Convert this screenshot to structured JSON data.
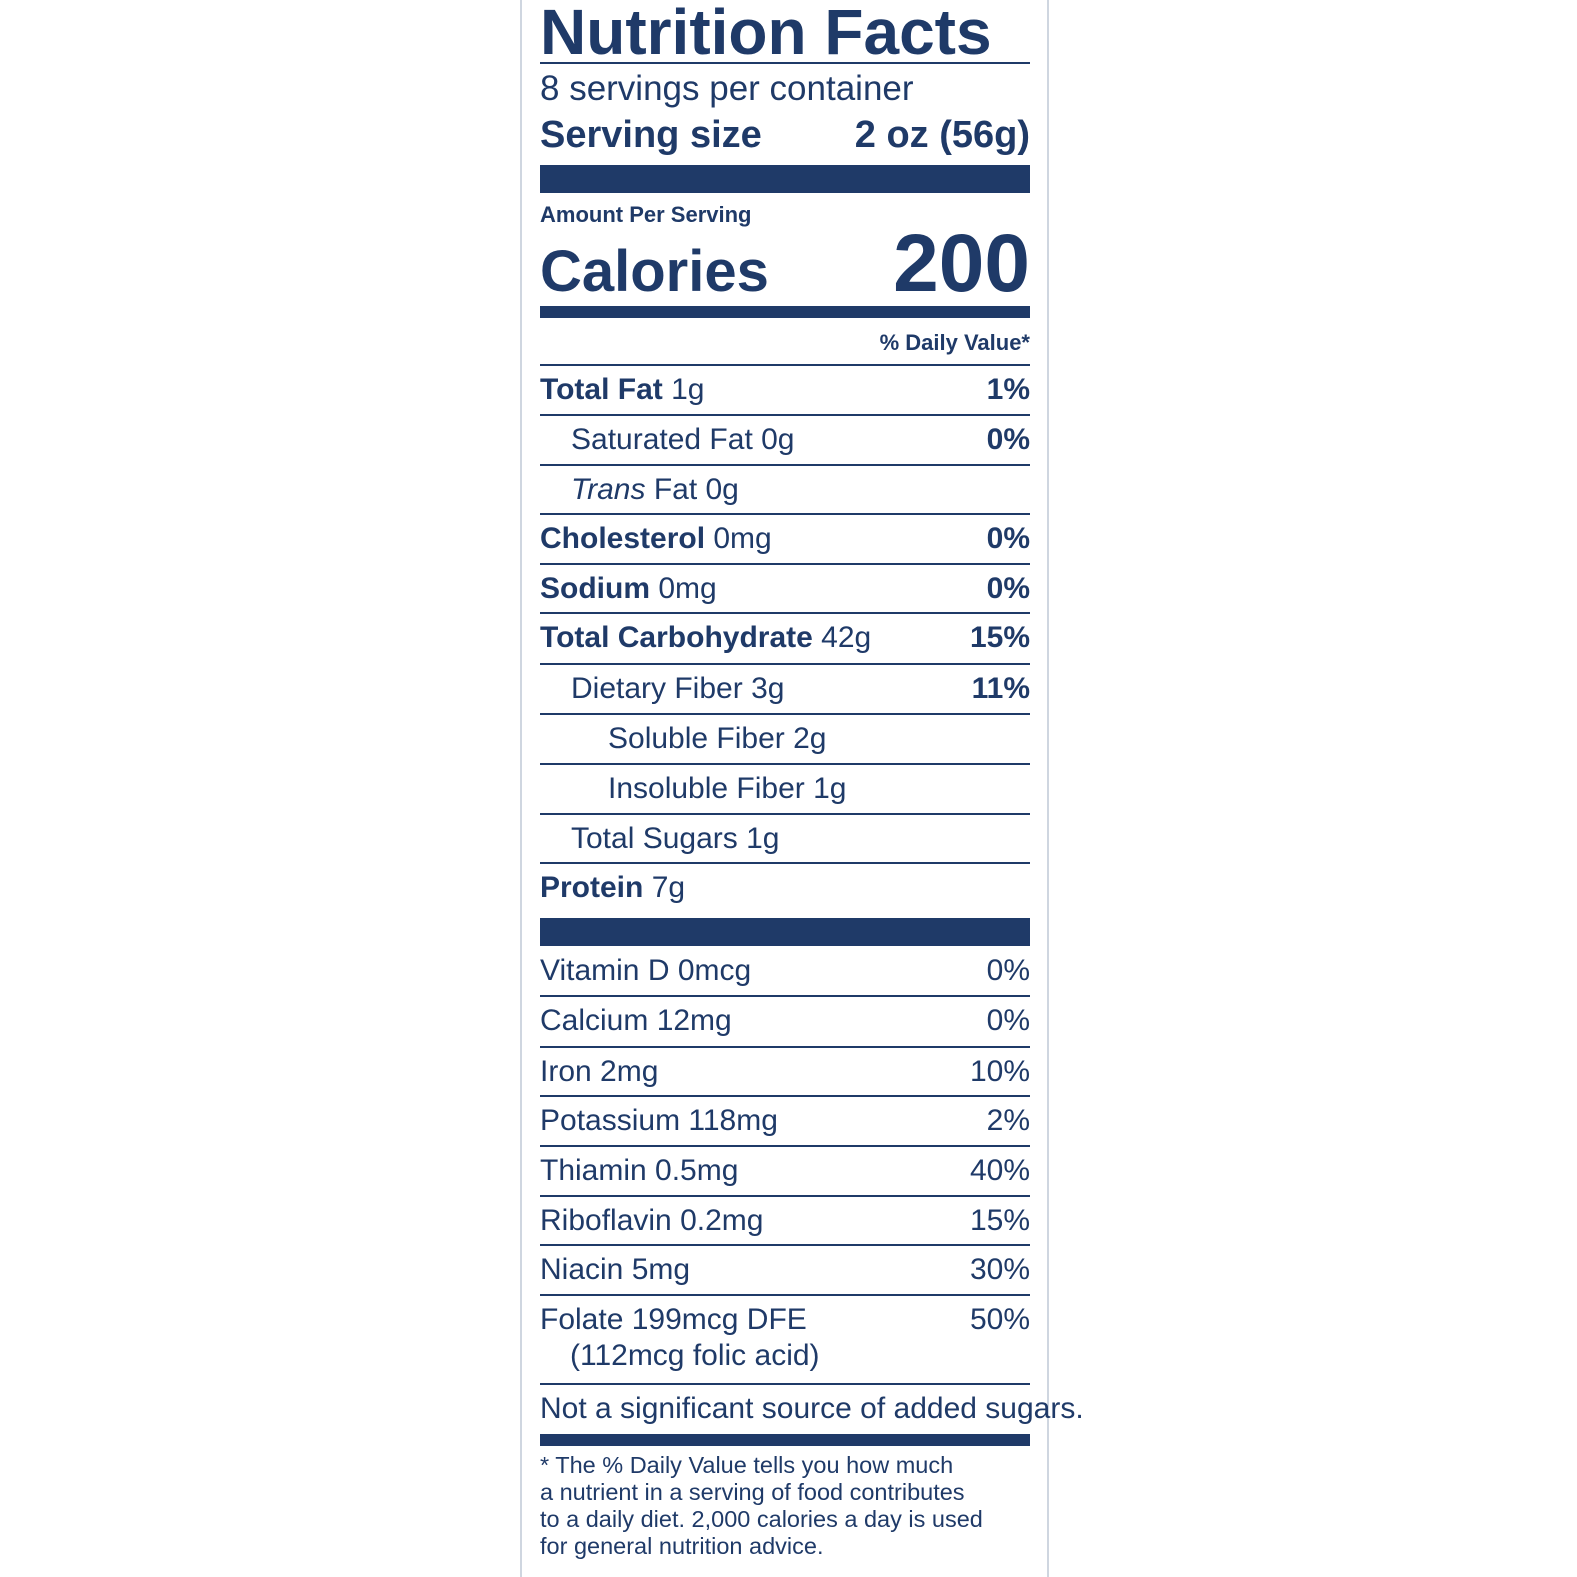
{
  "label": {
    "title": "Nutrition Facts",
    "servings_per_container": "8 servings per container",
    "serving_size_label": "Serving size",
    "serving_size_value": "2 oz (56g)",
    "amount_per_serving": "Amount Per Serving",
    "calories_label": "Calories",
    "calories_value": "200",
    "daily_value_header": "% Daily Value*",
    "nutrients": [
      {
        "name": "Total Fat",
        "amount": "1g",
        "dv": "1%"
      },
      {
        "name": "Saturated Fat",
        "amount": "0g",
        "dv": "0%"
      },
      {
        "name": "Trans",
        "amount": "Fat 0g",
        "dv": ""
      },
      {
        "name": "Cholesterol",
        "amount": "0mg",
        "dv": "0%"
      },
      {
        "name": "Sodium",
        "amount": "0mg",
        "dv": "0%"
      },
      {
        "name": "Total Carbohydrate",
        "amount": "42g",
        "dv": "15%"
      },
      {
        "name": "Dietary Fiber",
        "amount": "3g",
        "dv": "11%"
      },
      {
        "name": "Soluble Fiber",
        "amount": "2g",
        "dv": ""
      },
      {
        "name": "Insoluble Fiber",
        "amount": "1g",
        "dv": ""
      },
      {
        "name": "Total Sugars",
        "amount": "1g",
        "dv": ""
      },
      {
        "name": "Protein",
        "amount": "7g",
        "dv": ""
      }
    ],
    "vitamins": [
      {
        "text": "Vitamin D 0mcg",
        "dv": "0%"
      },
      {
        "text": "Calcium 12mg",
        "dv": "0%"
      },
      {
        "text": "Iron 2mg",
        "dv": "10%"
      },
      {
        "text": "Potassium 118mg",
        "dv": "2%"
      },
      {
        "text": "Thiamin 0.5mg",
        "dv": "40%"
      },
      {
        "text": "Riboflavin 0.2mg",
        "dv": "15%"
      },
      {
        "text": "Niacin 5mg",
        "dv": "30%"
      },
      {
        "text": "Folate 199mcg DFE",
        "dv": "50%"
      }
    ],
    "folate_note": "(112mcg folic acid)",
    "added_sugars_note": "Not a significant source of added sugars.",
    "footnote_lines": [
      "* The % Daily Value tells you how much",
      "a nutrient in a serving of food contributes",
      "to a daily diet. 2,000 calories a day is used",
      "for general nutrition advice."
    ],
    "colors": {
      "ink": "#1f3a68",
      "background": "#ffffff"
    }
  }
}
